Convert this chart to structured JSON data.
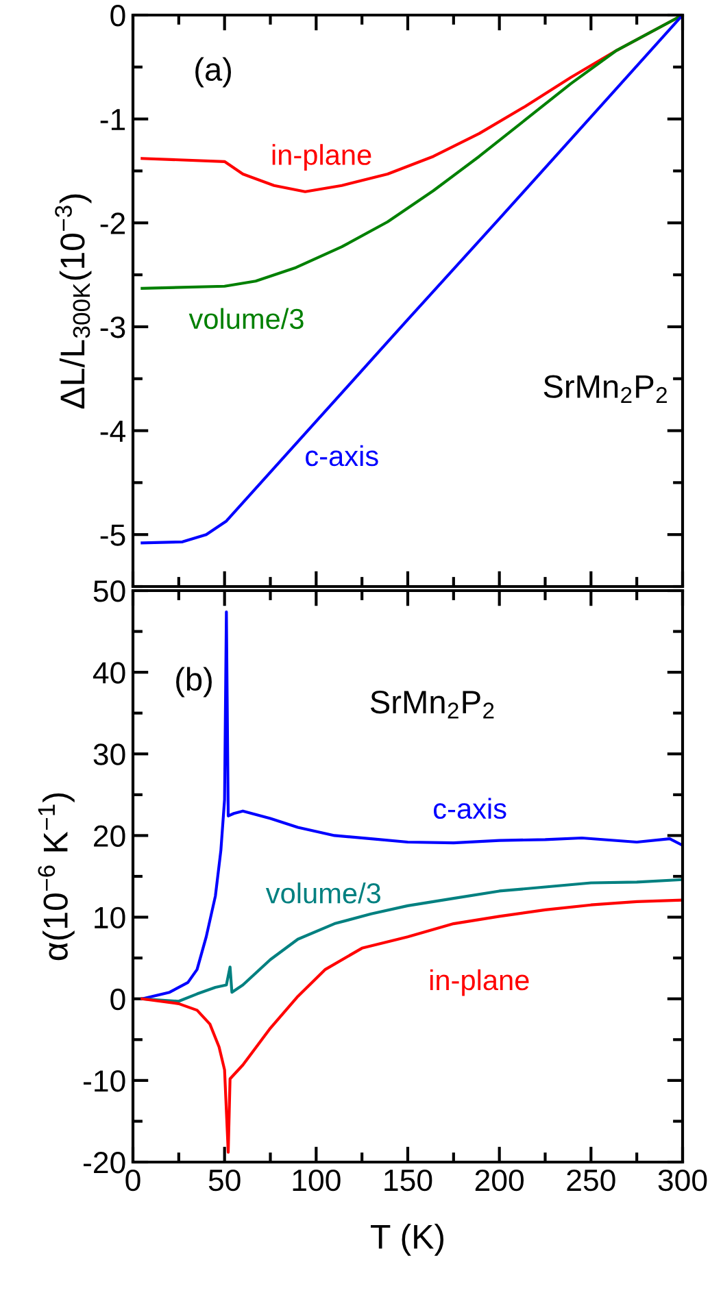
{
  "chart_data": [
    {
      "type": "line",
      "ylabel": "ΔL/L$_{300K}$(10$^{−3}$)",
      "xlim": [
        0,
        300
      ],
      "xticks": [
        {
          "value": 0,
          "label": null
        },
        {
          "value": 50,
          "label": null
        },
        {
          "value": 100,
          "label": null
        },
        {
          "value": 150,
          "label": null
        },
        {
          "value": 200,
          "label": null
        },
        {
          "value": 250,
          "label": null
        },
        {
          "value": 300,
          "label": null
        }
      ],
      "ylim": [
        -5.5,
        0
      ],
      "yticks": [
        -5,
        -4,
        -3,
        -2,
        -1,
        0
      ],
      "tick_labels": "y",
      "series": [
        {
          "name": "in-plane",
          "color": "#ff0000",
          "x": [
            5,
            50,
            60,
            77,
            94,
            114,
            139,
            164,
            189,
            214,
            239,
            264,
            300
          ],
          "values": [
            -1.38,
            -1.41,
            -1.53,
            -1.64,
            -1.7,
            -1.64,
            -1.53,
            -1.36,
            -1.14,
            -0.88,
            -0.6,
            -0.34,
            0
          ]
        },
        {
          "name": "volume/3",
          "color": "#008000",
          "x": [
            5,
            50,
            67,
            89,
            114,
            139,
            164,
            189,
            214,
            239,
            264,
            300
          ],
          "values": [
            -2.63,
            -2.61,
            -2.56,
            -2.43,
            -2.23,
            -1.99,
            -1.69,
            -1.36,
            -1.01,
            -0.66,
            -0.34,
            0
          ]
        },
        {
          "name": "c-axis",
          "color": "#0000ff",
          "x": [
            5,
            27,
            40,
            51,
            100,
            150,
            200,
            250,
            300
          ],
          "values": [
            -5.08,
            -5.07,
            -5.0,
            -4.87,
            -3.91,
            -2.93,
            -1.96,
            -0.98,
            0
          ]
        }
      ],
      "annotations": [
        "(a)",
        "SrMn$_{2}$P$_{2}$"
      ]
    },
    {
      "type": "line",
      "xlabel": "T (K)",
      "ylabel": "α(10$^{−6}$ K$^{−1}$)",
      "xlim": [
        0,
        300
      ],
      "xticks": [
        0,
        50,
        100,
        150,
        200,
        250,
        300
      ],
      "ylim": [
        -20,
        50
      ],
      "yticks": [
        -20,
        -10,
        0,
        10,
        20,
        30,
        40,
        50
      ],
      "series": [
        {
          "name": "c-axis",
          "color": "#0000ff",
          "x": [
            5,
            20,
            30,
            35,
            40,
            45,
            48,
            50,
            51,
            52,
            55,
            60,
            75,
            90,
            110,
            130,
            150,
            175,
            200,
            225,
            245,
            275,
            293,
            300
          ],
          "values": [
            0,
            0.8,
            2,
            3.6,
            7.6,
            12.6,
            18.2,
            24.4,
            47.4,
            22.4,
            22.7,
            23.0,
            22.1,
            21.0,
            20.0,
            19.6,
            19.2,
            19.1,
            19.4,
            19.5,
            19.7,
            19.2,
            19.6,
            18.8
          ]
        },
        {
          "name": "volume/3",
          "color": "#008080",
          "x": [
            5,
            25,
            35,
            45,
            51,
            53,
            54,
            60,
            75,
            90,
            110,
            130,
            150,
            175,
            200,
            225,
            250,
            275,
            300
          ],
          "values": [
            0,
            -0.3,
            0.6,
            1.4,
            1.7,
            3.9,
            0.8,
            1.7,
            4.8,
            7.3,
            9.2,
            10.4,
            11.4,
            12.3,
            13.2,
            13.7,
            14.2,
            14.3,
            14.6
          ]
        },
        {
          "name": "in-plane",
          "color": "#ff0000",
          "x": [
            5,
            25,
            35,
            42,
            47,
            50,
            52,
            53,
            60,
            75,
            90,
            105,
            125,
            150,
            175,
            200,
            225,
            250,
            275,
            300
          ],
          "values": [
            0,
            -0.6,
            -1.4,
            -3.1,
            -5.9,
            -8.7,
            -18.8,
            -9.8,
            -8.1,
            -3.6,
            0.3,
            3.6,
            6.2,
            7.6,
            9.2,
            10.1,
            10.9,
            11.5,
            11.9,
            12.1
          ]
        }
      ],
      "annotations": [
        "(b)",
        "SrMn$_{2}$P$_{2}$"
      ]
    }
  ]
}
